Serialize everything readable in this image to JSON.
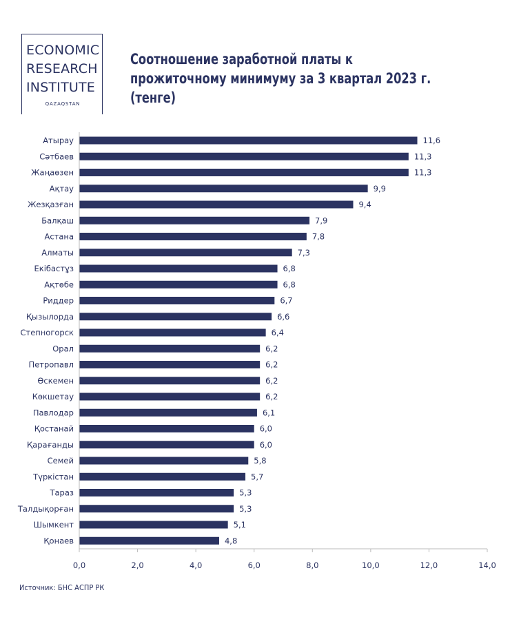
{
  "logo": {
    "line1": "ECONOMIC",
    "line2": "RESEARCH",
    "line3": "INSTITUTE",
    "sub": "QAZAQSTAN"
  },
  "title": "Соотношение заработной платы к прожиточному минимуму за 3 квартал 2023 г. (тенге)",
  "source": "Источник: БНС АСПР РК",
  "colors": {
    "bar": "#2b3361",
    "text": "#2b3361",
    "axis": "#bbbbbb"
  },
  "chart_data": {
    "type": "bar",
    "orientation": "horizontal",
    "categories": [
      "Атырау",
      "Сәтбаев",
      "Жаңаөзен",
      "Ақтау",
      "Жезқазған",
      "Балқаш",
      "Астана",
      "Алматы",
      "Екібастұз",
      "Ақтөбе",
      "Риддер",
      "Қызылорда",
      "Степногорск",
      "Орал",
      "Петропавл",
      "Өскемен",
      "Көкшетау",
      "Павлодар",
      "Қостанай",
      "Қарағанды",
      "Семей",
      "Түркістан",
      "Тараз",
      "Талдықорған",
      "Шымкент",
      "Қонаев"
    ],
    "values": [
      11.6,
      11.3,
      11.3,
      9.9,
      9.4,
      7.9,
      7.8,
      7.3,
      6.8,
      6.8,
      6.7,
      6.6,
      6.4,
      6.2,
      6.2,
      6.2,
      6.2,
      6.1,
      6.0,
      6.0,
      5.8,
      5.7,
      5.3,
      5.3,
      5.1,
      4.8
    ],
    "value_labels": [
      "11,6",
      "11,3",
      "11,3",
      "9,9",
      "9,4",
      "7,9",
      "7,8",
      "7,3",
      "6,8",
      "6,8",
      "6,7",
      "6,6",
      "6,4",
      "6,2",
      "6,2",
      "6,2",
      "6,2",
      "6,1",
      "6,0",
      "6,0",
      "5,8",
      "5,7",
      "5,3",
      "5,3",
      "5,1",
      "4,8"
    ],
    "xlim": [
      0,
      14
    ],
    "x_ticks": [
      0,
      2,
      4,
      6,
      8,
      10,
      12,
      14
    ],
    "x_tick_labels": [
      "0,0",
      "2,0",
      "4,0",
      "6,0",
      "8,0",
      "10,0",
      "12,0",
      "14,0"
    ],
    "grid": false,
    "legend": "none"
  }
}
